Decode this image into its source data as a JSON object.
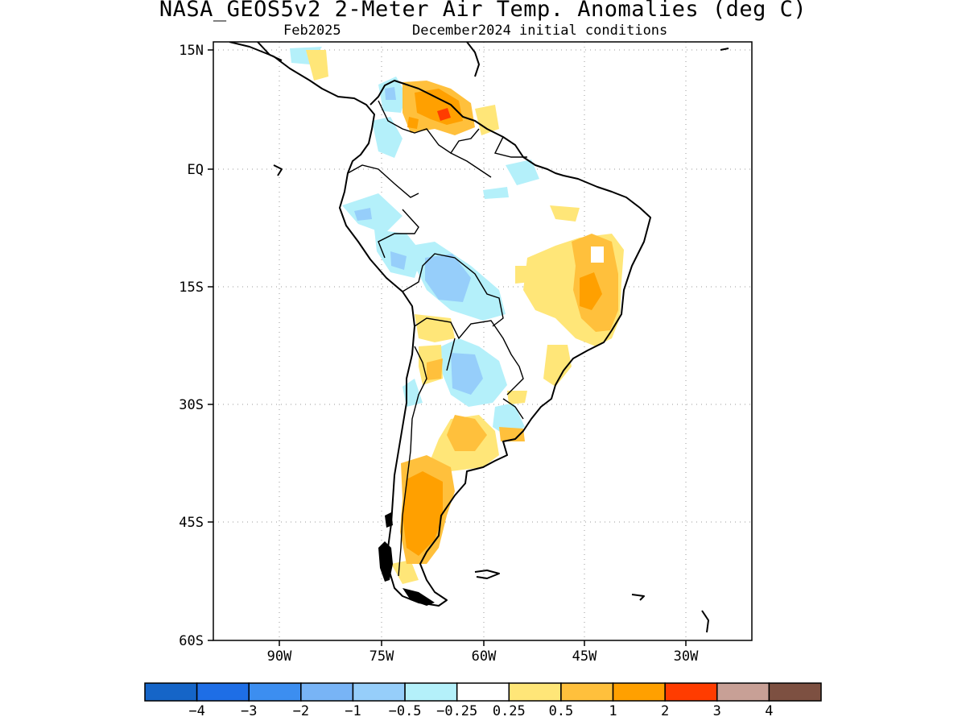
{
  "title": "NASA_GEOS5v2 2-Meter Air Temp. Anomalies (deg C)",
  "subtitle_left": "Feb2025",
  "subtitle_right": "December2024 initial conditions",
  "lat_ticks": [
    "15N",
    "EQ",
    "15S",
    "30S",
    "45S",
    "60S"
  ],
  "lon_ticks": [
    "90W",
    "75W",
    "60W",
    "45W",
    "30W"
  ],
  "colorbar": {
    "colors": [
      "#1565c8",
      "#1e6ee6",
      "#3c8ef0",
      "#78b4f6",
      "#96cefa",
      "#b4f0fa",
      "#ffffff",
      "#ffe678",
      "#ffc03c",
      "#ffa000",
      "#ff3c00",
      "#c8a096",
      "#7d5041"
    ],
    "labels": [
      "-4",
      "-3",
      "-2",
      "-1",
      "-0.5",
      "-0.25",
      "0.25",
      "0.5",
      "1",
      "2",
      "3",
      "4"
    ]
  }
}
